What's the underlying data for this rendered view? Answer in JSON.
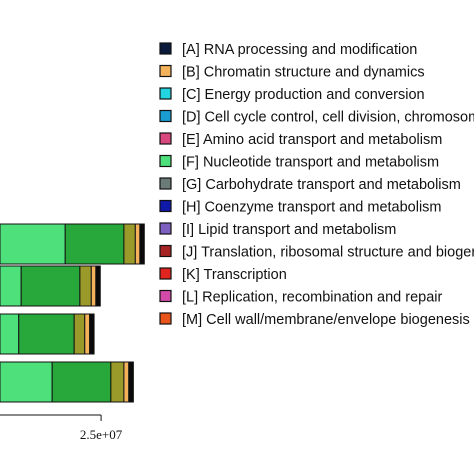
{
  "chart_data": {
    "type": "bar",
    "orientation": "horizontal",
    "stacked": true,
    "x_ticks": [
      {
        "value": 25000000,
        "label": "2.5e+07"
      }
    ],
    "bars": [
      {
        "segments": [
          {
            "category": "F",
            "value": 40000000
          },
          {
            "category": "F2",
            "value": 36000000
          },
          {
            "category": "G",
            "value": 7000000
          },
          {
            "category": "B",
            "value": 2800000
          },
          {
            "category": "black",
            "value": 2700000
          }
        ]
      },
      {
        "segments": [
          {
            "category": "F",
            "value": 13000000
          },
          {
            "category": "F2",
            "value": 36000000
          },
          {
            "category": "G",
            "value": 7000000
          },
          {
            "category": "B",
            "value": 2800000
          },
          {
            "category": "black",
            "value": 2700000
          }
        ]
      },
      {
        "segments": [
          {
            "category": "F",
            "value": 11500000
          },
          {
            "category": "F2",
            "value": 34000000
          },
          {
            "category": "G",
            "value": 6500000
          },
          {
            "category": "B",
            "value": 3000000
          },
          {
            "category": "black",
            "value": 2700000
          }
        ]
      },
      {
        "segments": [
          {
            "category": "F",
            "value": 32000000
          },
          {
            "category": "F2",
            "value": 36000000
          },
          {
            "category": "G",
            "value": 8000000
          },
          {
            "category": "B",
            "value": 3000000
          },
          {
            "category": "black",
            "value": 2800000
          }
        ]
      }
    ],
    "legend": [
      {
        "key": "A",
        "label": "[A] RNA processing and modification",
        "color": "#0b1a3a"
      },
      {
        "key": "B",
        "label": "[B] Chromatin structure and dynamics",
        "color": "#f4b35a"
      },
      {
        "key": "C",
        "label": "[C] Energy production and conversion",
        "color": "#22d3e0"
      },
      {
        "key": "D",
        "label": "[D] Cell cycle control, cell division, chromosome partitioning",
        "color": "#1a9ed1"
      },
      {
        "key": "E",
        "label": "[E] Amino acid transport and metabolism",
        "color": "#d9487f"
      },
      {
        "key": "F",
        "label": "[F] Nucleotide transport and metabolism",
        "color": "#4ee07a"
      },
      {
        "key": "G",
        "label": "[G] Carbohydrate transport and metabolism",
        "color": "#6b7b78"
      },
      {
        "key": "H",
        "label": "[H] Coenzyme transport and metabolism",
        "color": "#101aa8"
      },
      {
        "key": "I",
        "label": "[I] Lipid transport and metabolism",
        "color": "#7d5fc0"
      },
      {
        "key": "J",
        "label": "[J] Translation, ribosomal structure and biogenesis",
        "color": "#a82424"
      },
      {
        "key": "K",
        "label": "[K] Transcription",
        "color": "#e0241f"
      },
      {
        "key": "L",
        "label": "[L] Replication, recombination and repair",
        "color": "#d44aa8"
      },
      {
        "key": "M",
        "label": "[M] Cell wall/membrane/envelope biogenesis",
        "color": "#e8541a"
      }
    ],
    "segment_colors": {
      "F": "#4ee07a",
      "F2": "#28a83a",
      "G": "#9a9a2a",
      "B": "#f4b35a",
      "black": "#0a0a0a"
    },
    "xlim": [
      -37000000,
      55000000
    ]
  }
}
